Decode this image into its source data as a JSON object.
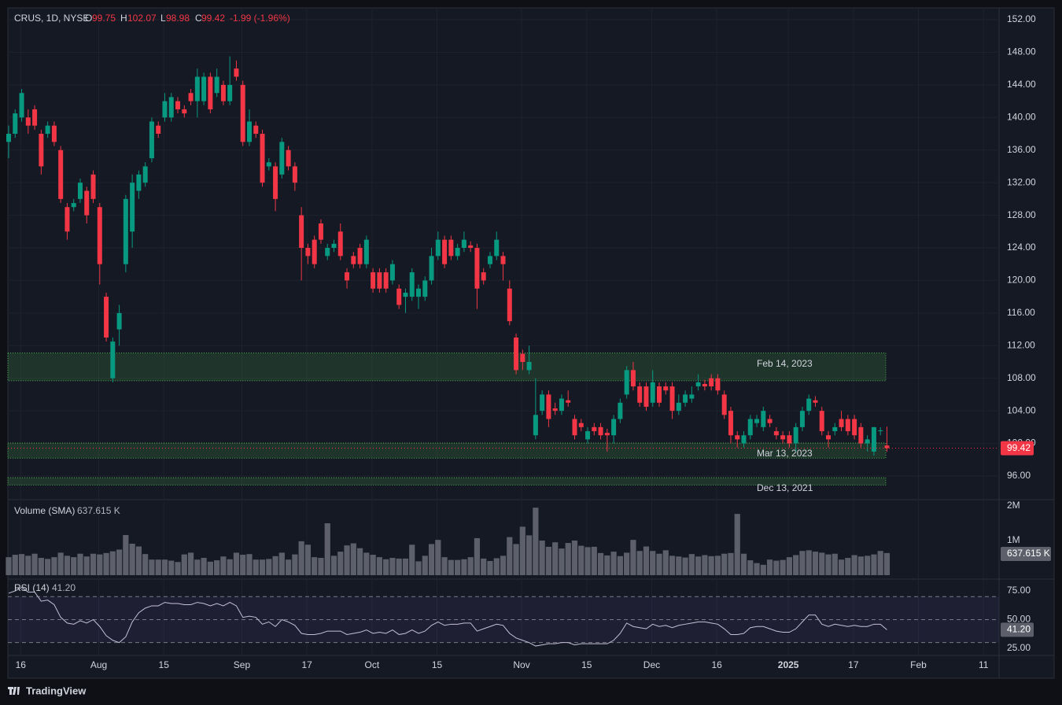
{
  "header": {
    "symbol": "CRUS, 1D, NYSE",
    "o": "O",
    "h": "H",
    "l": "L",
    "c": "C",
    "change": "-1.99 (-1.96%)"
  },
  "chart_data": [
    {
      "type": "candlestick",
      "up_color": "#089981",
      "down_color": "#f23645",
      "candles": [
        [
          137,
          139,
          135,
          138
        ],
        [
          138,
          141,
          137.5,
          140.5
        ],
        [
          140,
          143.5,
          139.5,
          143
        ],
        [
          140,
          141,
          138,
          139
        ],
        [
          141,
          141.5,
          138.5,
          139
        ],
        [
          138,
          138.5,
          133,
          134
        ],
        [
          138,
          139.5,
          137.5,
          139
        ],
        [
          139,
          139.5,
          136.5,
          137
        ],
        [
          136,
          136.5,
          129.5,
          130
        ],
        [
          129,
          129.5,
          125,
          126
        ],
        [
          129,
          130,
          128.5,
          129.5
        ],
        [
          130,
          132.5,
          129.5,
          132
        ],
        [
          131,
          131.5,
          127,
          128
        ],
        [
          133,
          133.5,
          129.5,
          130
        ],
        [
          129,
          129.5,
          119.5,
          122
        ],
        [
          118,
          118.5,
          112.5,
          113
        ],
        [
          108,
          113,
          107.5,
          112.5
        ],
        [
          114,
          117,
          112,
          116
        ],
        [
          122,
          130.5,
          121,
          130
        ],
        [
          126,
          133,
          124,
          132
        ],
        [
          131,
          133.5,
          130,
          133
        ],
        [
          132,
          134.5,
          131.5,
          134
        ],
        [
          135,
          140,
          134.5,
          139.5
        ],
        [
          139,
          139.5,
          137.5,
          138
        ],
        [
          140,
          143,
          139.5,
          142
        ],
        [
          140,
          143,
          139.5,
          142.5
        ],
        [
          142,
          142.5,
          140.5,
          141
        ],
        [
          141,
          141.5,
          140,
          140.5
        ],
        [
          143,
          143.5,
          141.5,
          142
        ],
        [
          142,
          146,
          140,
          145
        ],
        [
          142,
          145.5,
          141.5,
          145
        ],
        [
          145,
          145.5,
          140.5,
          141
        ],
        [
          143,
          146,
          142.5,
          145
        ],
        [
          144,
          144.5,
          141.5,
          142
        ],
        [
          142,
          147.5,
          141.5,
          144
        ],
        [
          146,
          147,
          144.5,
          145
        ],
        [
          144,
          144.5,
          136.5,
          137
        ],
        [
          137,
          141,
          136.5,
          139.5
        ],
        [
          139,
          139.5,
          137.5,
          138
        ],
        [
          138,
          138.5,
          131.5,
          132
        ],
        [
          134,
          135,
          133.5,
          134.5
        ],
        [
          134,
          134.5,
          128.5,
          130
        ],
        [
          133,
          137.5,
          132.5,
          137
        ],
        [
          136,
          136.5,
          133.5,
          134
        ],
        [
          134,
          134.5,
          131,
          132
        ],
        [
          128,
          129,
          120,
          124
        ],
        [
          124,
          124.5,
          122,
          123
        ],
        [
          125,
          125.5,
          121.5,
          122
        ],
        [
          127,
          127.5,
          124.5,
          125
        ],
        [
          123,
          124.5,
          122.5,
          124
        ],
        [
          124,
          125,
          123.5,
          124.5
        ],
        [
          126,
          127,
          122.5,
          123
        ],
        [
          121,
          121.5,
          119,
          120
        ],
        [
          123,
          123.5,
          121.5,
          122
        ],
        [
          124,
          124.5,
          121.5,
          122
        ],
        [
          122,
          125.5,
          121.5,
          125
        ],
        [
          121,
          121.5,
          118.5,
          119
        ],
        [
          121,
          121.5,
          118.5,
          119
        ],
        [
          121,
          121.5,
          118.5,
          119
        ],
        [
          120,
          122.5,
          119.5,
          122
        ],
        [
          119,
          119.5,
          116.5,
          117
        ],
        [
          118,
          119,
          116,
          118.5
        ],
        [
          118,
          121.5,
          117.5,
          121
        ],
        [
          118,
          119.5,
          116.5,
          119
        ],
        [
          118,
          120.5,
          117.5,
          120
        ],
        [
          120,
          124,
          119.5,
          123
        ],
        [
          123,
          126,
          122.5,
          125
        ],
        [
          125,
          125.5,
          121.5,
          122
        ],
        [
          125,
          125.5,
          122.5,
          123
        ],
        [
          123,
          124.5,
          122.5,
          124
        ],
        [
          124,
          126,
          123.5,
          125
        ],
        [
          124.3,
          124.8,
          123.5,
          124
        ],
        [
          124,
          124.5,
          116.5,
          119
        ],
        [
          121,
          121.5,
          119.5,
          120
        ],
        [
          122,
          123.5,
          121.5,
          123
        ],
        [
          123,
          126,
          122.5,
          125
        ],
        [
          123,
          123.5,
          120,
          122
        ],
        [
          119,
          120,
          114.5,
          115
        ],
        [
          113,
          113.5,
          108.5,
          109
        ],
        [
          111,
          111.5,
          109,
          110
        ],
        [
          109,
          112,
          108.5,
          110
        ],
        [
          101,
          108,
          100.5,
          103.5
        ],
        [
          104,
          106.5,
          103.5,
          106
        ],
        [
          106,
          106.5,
          102,
          103
        ],
        [
          104.3,
          105,
          103.5,
          104
        ],
        [
          104,
          106,
          103.5,
          105.5
        ],
        [
          105.3,
          106.5,
          104.5,
          105
        ],
        [
          103,
          103.5,
          100.5,
          101
        ],
        [
          102.5,
          103,
          101.5,
          102
        ],
        [
          100.5,
          102,
          100,
          101.5
        ],
        [
          102,
          102.5,
          101,
          101.5
        ],
        [
          102,
          102.5,
          100.5,
          101
        ],
        [
          101.3,
          101.8,
          99,
          101
        ],
        [
          101,
          103.5,
          100,
          103
        ],
        [
          103,
          105.5,
          102.5,
          105
        ],
        [
          106,
          109.5,
          105.5,
          109
        ],
        [
          109,
          110,
          106.5,
          107
        ],
        [
          107,
          107.5,
          104.5,
          105
        ],
        [
          107,
          107.5,
          104,
          104.5
        ],
        [
          105,
          109,
          104.5,
          107.5
        ],
        [
          107,
          107.5,
          104.5,
          105
        ],
        [
          107,
          107.5,
          106,
          106.5
        ],
        [
          107,
          107.5,
          103,
          104
        ],
        [
          104,
          106,
          103.5,
          105
        ],
        [
          105,
          106.5,
          104.5,
          106
        ],
        [
          105.5,
          107,
          105,
          106
        ],
        [
          107,
          108.5,
          106.5,
          107.5
        ],
        [
          107.3,
          107.8,
          106.5,
          107
        ],
        [
          108,
          108.5,
          106.5,
          107
        ],
        [
          108,
          108.5,
          106,
          106.5
        ],
        [
          106,
          106.5,
          103,
          103.5
        ],
        [
          104,
          104.5,
          100,
          101
        ],
        [
          101,
          101.5,
          99.5,
          100.5
        ],
        [
          100,
          101.5,
          99.5,
          101
        ],
        [
          101,
          103.5,
          100.5,
          103
        ],
        [
          102.5,
          103.5,
          102,
          103
        ],
        [
          102,
          104.5,
          101.5,
          104
        ],
        [
          103,
          103.5,
          102,
          102.5
        ],
        [
          101.5,
          102,
          100.5,
          101
        ],
        [
          101,
          101.5,
          100,
          100.5
        ],
        [
          101,
          101.5,
          99.5,
          100
        ],
        [
          100,
          102.5,
          99,
          102
        ],
        [
          102,
          104.5,
          101.5,
          104
        ],
        [
          104,
          106,
          103.5,
          105.5
        ],
        [
          105.3,
          105.8,
          104.5,
          105
        ],
        [
          104,
          104.5,
          101,
          101.5
        ],
        [
          101,
          101.5,
          99.5,
          100.5
        ],
        [
          101.5,
          102.5,
          101,
          102
        ],
        [
          103,
          104,
          101.5,
          102
        ],
        [
          103,
          103.5,
          101,
          101.5
        ],
        [
          103,
          103.5,
          100.5,
          101
        ],
        [
          102,
          102.5,
          99.5,
          100
        ],
        [
          100,
          101,
          99,
          100.5
        ],
        [
          99,
          102,
          98.5,
          102
        ],
        [
          101.5,
          102,
          101,
          101.6
        ],
        [
          99.75,
          102.07,
          98.98,
          99.42
        ]
      ],
      "ylim": [
        93.2,
        153.45
      ],
      "yticks": [
        {
          "value": 96,
          "label": "96.00"
        },
        {
          "value": 100,
          "label": "100.00"
        },
        {
          "value": 104,
          "label": "104.00"
        },
        {
          "value": 108,
          "label": "108.00"
        },
        {
          "value": 112,
          "label": "112.00"
        },
        {
          "value": 116,
          "label": "116.00"
        },
        {
          "value": 120,
          "label": "120.00"
        },
        {
          "value": 124,
          "label": "124.00"
        },
        {
          "value": 128,
          "label": "128.00"
        },
        {
          "value": 132,
          "label": "132.00"
        },
        {
          "value": 136,
          "label": "136.00"
        },
        {
          "value": 140,
          "label": "140.00"
        },
        {
          "value": 144,
          "label": "144.00"
        },
        {
          "value": 148,
          "label": "148.00"
        },
        {
          "value": 152,
          "label": "152.00"
        }
      ],
      "time_labels": [
        {
          "index": 1,
          "label": "16"
        },
        {
          "index": 13,
          "label": "Aug"
        },
        {
          "index": 23,
          "label": "15"
        },
        {
          "index": 35,
          "label": "Sep"
        },
        {
          "index": 45,
          "label": "17"
        },
        {
          "index": 55,
          "label": "Oct"
        },
        {
          "index": 65,
          "label": "15"
        },
        {
          "index": 78,
          "label": "Nov"
        },
        {
          "index": 88,
          "label": "15"
        },
        {
          "index": 98,
          "label": "Dec"
        },
        {
          "index": 108,
          "label": "16"
        },
        {
          "index": 119,
          "label": "2025"
        },
        {
          "index": 129,
          "label": "17"
        },
        {
          "index": 139,
          "label": "Feb"
        },
        {
          "index": 149,
          "label": "11"
        }
      ],
      "zones": [
        {
          "label": "Feb 14, 2023",
          "top": 111.1,
          "bottom": 107.7
        },
        {
          "label": "Mar 13, 2023",
          "top": 100.05,
          "bottom": 98.2
        },
        {
          "label": "Dec 13, 2021",
          "top": 95.8,
          "bottom": 94.9
        }
      ],
      "zone_color": "#4caf50",
      "grid": true
    },
    {
      "type": "bar",
      "title": "Volume (SMA)",
      "sma_label": "637.615 K",
      "color": "#5d606b",
      "values": [
        520000,
        590000,
        610000,
        560000,
        620000,
        500000,
        470000,
        520000,
        650000,
        560000,
        520000,
        620000,
        540000,
        620000,
        600000,
        640000,
        690000,
        740000,
        1160000,
        910000,
        830000,
        610000,
        450000,
        450000,
        450000,
        420000,
        380000,
        600000,
        650000,
        450000,
        500000,
        390000,
        430000,
        540000,
        460000,
        650000,
        590000,
        610000,
        450000,
        450000,
        470000,
        550000,
        650000,
        450000,
        600000,
        980000,
        880000,
        520000,
        500000,
        1500000,
        560000,
        680000,
        860000,
        920000,
        780000,
        650000,
        590000,
        520000,
        460000,
        500000,
        480000,
        480000,
        880000,
        400000,
        560000,
        900000,
        1020000,
        520000,
        440000,
        440000,
        460000,
        520000,
        1070000,
        480000,
        410000,
        490000,
        560000,
        1100000,
        900000,
        1400000,
        1150000,
        1950000,
        1000000,
        820000,
        950000,
        770000,
        930000,
        1000000,
        850000,
        810000,
        820000,
        640000,
        570000,
        680000,
        550000,
        650000,
        1020000,
        700000,
        830000,
        700000,
        620000,
        720000,
        560000,
        540000,
        510000,
        610000,
        540000,
        580000,
        550000,
        560000,
        620000,
        640000,
        1770000,
        620000,
        430000,
        350000,
        300000,
        450000,
        420000,
        440000,
        520000,
        580000,
        700000,
        720000,
        680000,
        650000,
        600000,
        620000,
        450000,
        500000,
        580000,
        540000,
        560000,
        600000,
        700000,
        640000
      ],
      "ylim": [
        0,
        2160000
      ],
      "yticks": [
        {
          "value": 1000000,
          "label": "1M"
        },
        {
          "value": 2000000,
          "label": "2M"
        }
      ]
    },
    {
      "type": "line",
      "title": "RSI (14)",
      "last_label": "41.20",
      "color": "#c4bfd8",
      "band_color": "#7e57c2",
      "values": [
        73,
        75,
        78,
        74,
        74,
        66,
        67,
        63,
        52,
        47,
        46,
        49,
        47,
        50,
        44,
        36,
        32,
        30,
        35,
        48,
        56,
        60,
        62,
        62,
        65,
        64,
        64,
        63,
        63,
        65,
        64,
        62,
        64,
        62,
        65,
        62,
        52,
        53,
        52,
        46,
        48,
        44,
        50,
        48,
        45,
        38,
        37,
        37,
        38,
        40,
        40,
        40,
        37,
        38,
        39,
        41,
        38,
        39,
        38,
        41,
        37,
        38,
        41,
        38,
        40,
        45,
        48,
        45,
        46,
        46,
        47,
        47,
        40,
        42,
        44,
        46,
        45,
        38,
        34,
        32,
        30,
        27,
        28,
        29,
        29,
        30,
        30,
        28,
        29,
        29,
        29,
        29,
        29,
        32,
        38,
        47,
        44,
        43,
        42,
        46,
        44,
        45,
        43,
        45,
        46,
        47,
        48,
        48,
        47,
        46,
        42,
        37,
        37,
        38,
        43,
        44,
        44,
        42,
        40,
        39,
        39,
        42,
        48,
        54,
        54,
        46,
        44,
        46,
        45,
        44,
        45,
        44,
        44,
        46,
        46,
        41.2
      ],
      "ylim": [
        19.5,
        83.9
      ],
      "yticks": [
        {
          "value": 25,
          "label": "25.00"
        },
        {
          "value": 50,
          "label": "50.00"
        },
        {
          "value": 75,
          "label": "75.00"
        }
      ],
      "band": [
        30,
        70
      ],
      "levels": [
        30,
        50,
        70
      ]
    }
  ],
  "footer": {
    "brand": "TradingView"
  }
}
